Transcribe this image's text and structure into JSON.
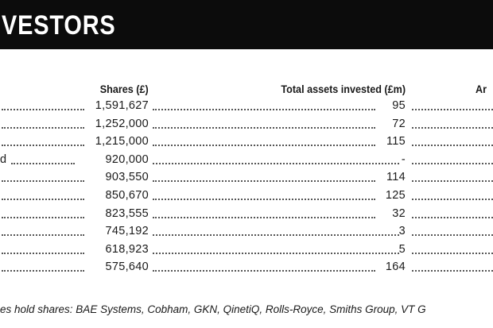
{
  "header": {
    "title": "VESTORS"
  },
  "table": {
    "columns": [
      "Shares (£)",
      "Total assets invested (£m)",
      "Ar"
    ],
    "rows": [
      {
        "shares": "1,591,627",
        "assets": "95"
      },
      {
        "shares": "1,252,000",
        "assets": "72"
      },
      {
        "shares": "1,215,000",
        "assets": "115"
      },
      {
        "label": "d",
        "shares": "920,000",
        "assets": "-"
      },
      {
        "shares": "903,550",
        "assets": "114"
      },
      {
        "shares": "850,670",
        "assets": "125"
      },
      {
        "shares": "823,555",
        "assets": "32"
      },
      {
        "shares": "745,192",
        "assets": "3"
      },
      {
        "shares": "618,923",
        "assets": "5"
      },
      {
        "shares": "575,640",
        "assets": "164"
      }
    ]
  },
  "footnote": "es hold shares: BAE Systems, Cobham, GKN, QinetiQ, Rolls-Royce, Smiths Group, VT G"
}
